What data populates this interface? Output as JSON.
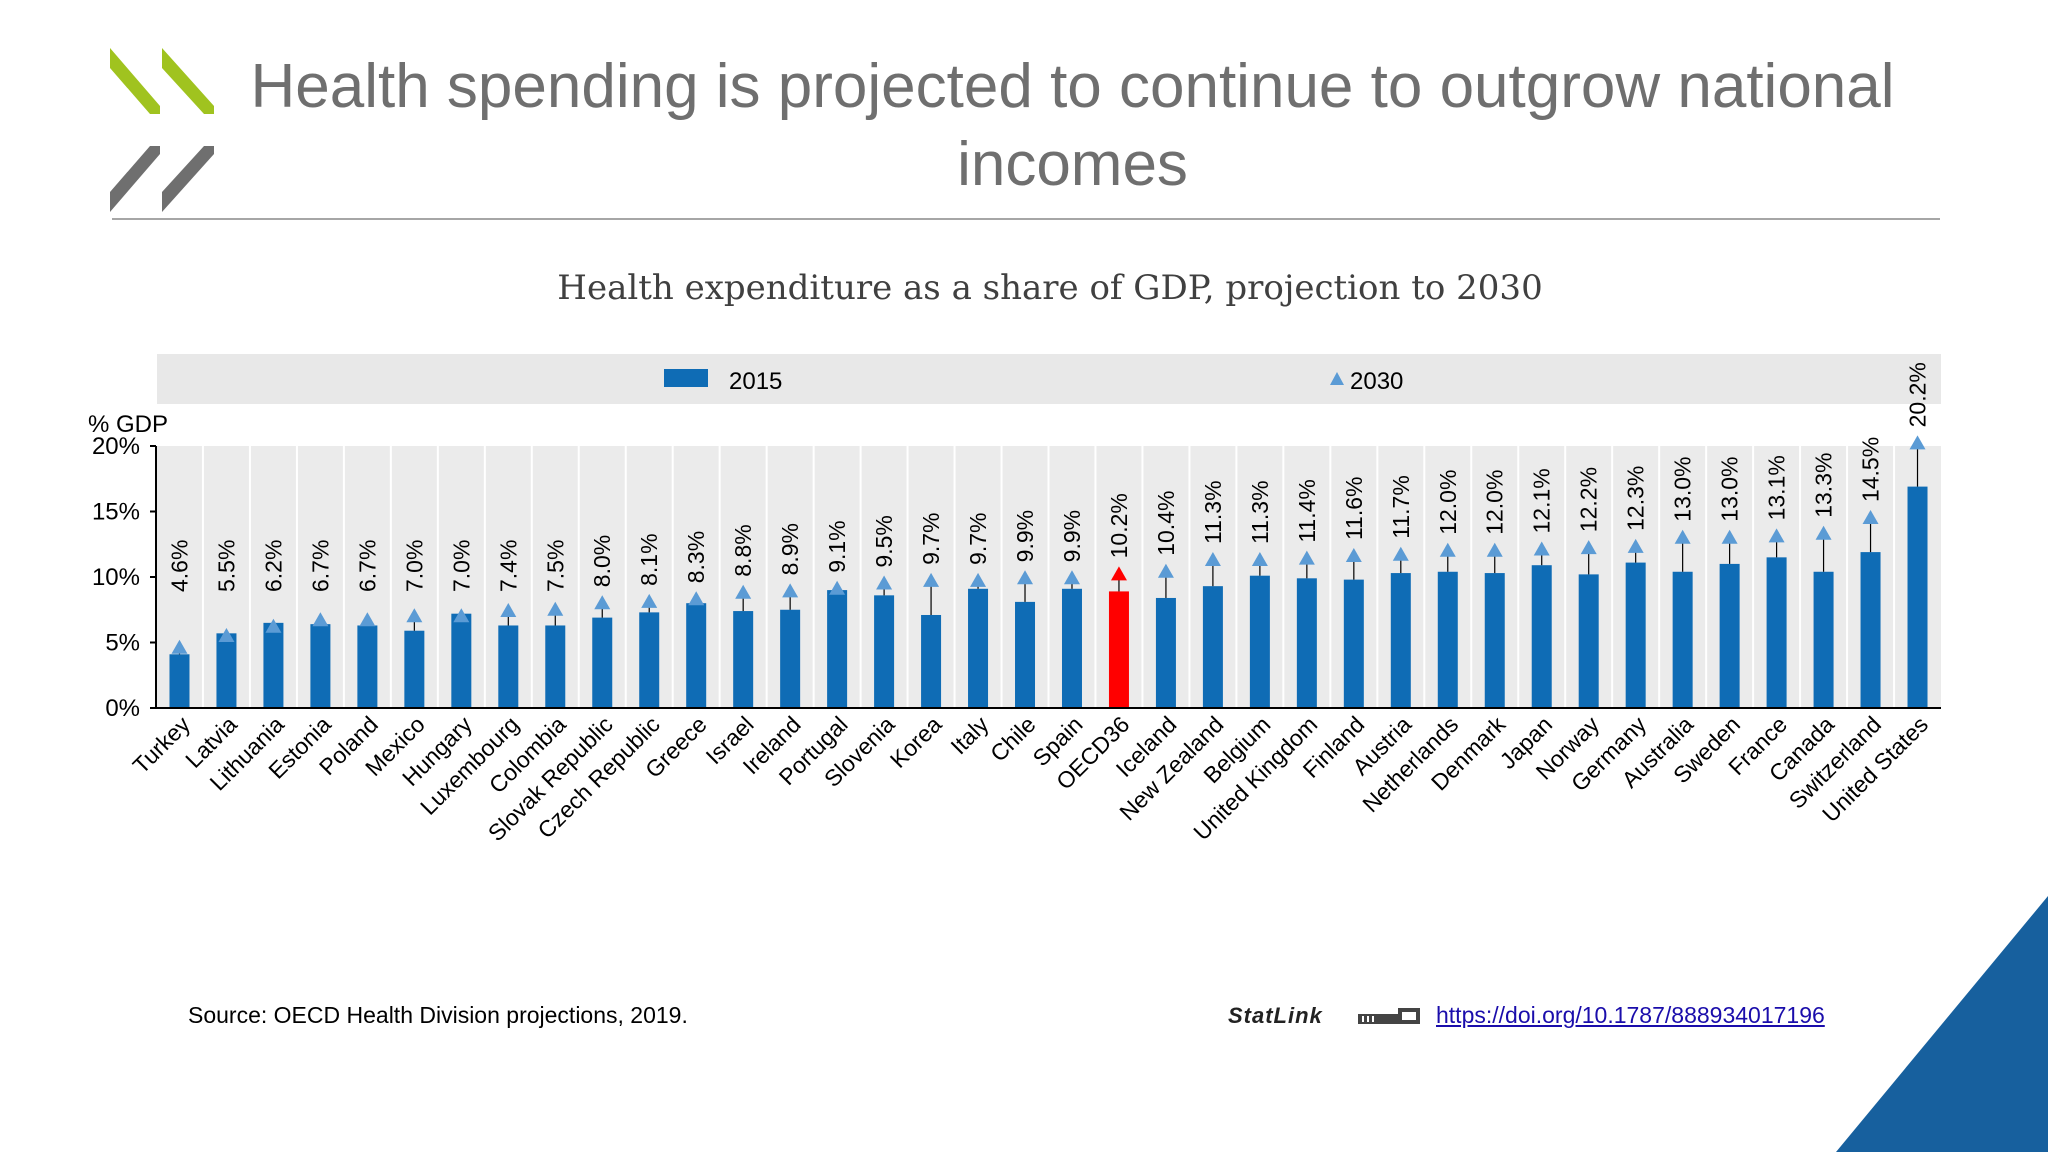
{
  "slide": {
    "title": "Health spending is projected to continue to outgrow national incomes",
    "source": "Source: OECD Health Division projections, 2019.",
    "statlink_label": "StatLink",
    "statlink_url": "https://doi.org/10.1787/888934017196"
  },
  "colors": {
    "bar": "#0f6cb5",
    "highlight_bar": "#ff0000",
    "marker": "#5b9bd5",
    "highlight_marker": "#ff0000",
    "legend_bg": "#e8e8e8",
    "plot_bg": "#ebebeb",
    "logo_green": "#a0c31f",
    "logo_grey": "#6f6f6f",
    "corner_blue": "#17609e"
  },
  "chart_data": {
    "type": "bar",
    "title": "Health expenditure as a share of GDP, projection to 2030",
    "ylabel": "% GDP",
    "ylim": [
      0,
      20
    ],
    "yticks": [
      "0%",
      "5%",
      "10%",
      "15%",
      "20%"
    ],
    "ytick_values": [
      0,
      5,
      10,
      15,
      20
    ],
    "legend_position": "top",
    "grid": "vertical",
    "highlight_category": "OECD36",
    "categories": [
      "Turkey",
      "Latvia",
      "Lithuania",
      "Estonia",
      "Poland",
      "Mexico",
      "Hungary",
      "Luxembourg",
      "Colombia",
      "Slovak Republic",
      "Czech Republic",
      "Greece",
      "Israel",
      "Ireland",
      "Portugal",
      "Slovenia",
      "Korea",
      "Italy",
      "Chile",
      "Spain",
      "OECD36",
      "Iceland",
      "New Zealand",
      "Belgium",
      "United Kingdom",
      "Finland",
      "Austria",
      "Netherlands",
      "Denmark",
      "Japan",
      "Norway",
      "Germany",
      "Australia",
      "Sweden",
      "France",
      "Canada",
      "Switzerland",
      "United States"
    ],
    "series": [
      {
        "name": "2015",
        "type": "bar",
        "values": [
          4.1,
          5.7,
          6.5,
          6.4,
          6.3,
          5.9,
          7.2,
          6.3,
          6.3,
          6.9,
          7.3,
          8.0,
          7.4,
          7.5,
          9.0,
          8.6,
          7.1,
          9.1,
          8.1,
          9.1,
          8.9,
          8.4,
          9.3,
          10.1,
          9.9,
          9.8,
          10.3,
          10.4,
          10.3,
          10.9,
          10.2,
          11.1,
          10.4,
          11.0,
          11.5,
          10.4,
          11.9,
          16.9
        ]
      },
      {
        "name": "2030",
        "type": "marker",
        "values": [
          4.6,
          5.5,
          6.2,
          6.7,
          6.7,
          7.0,
          7.0,
          7.4,
          7.5,
          8.0,
          8.1,
          8.3,
          8.8,
          8.9,
          9.1,
          9.5,
          9.7,
          9.7,
          9.9,
          9.9,
          10.2,
          10.4,
          11.3,
          11.3,
          11.4,
          11.6,
          11.7,
          12.0,
          12.0,
          12.1,
          12.2,
          12.3,
          13.0,
          13.0,
          13.1,
          13.3,
          14.5,
          20.2
        ]
      }
    ],
    "data_labels": [
      "4.6%",
      "5.5%",
      "6.2%",
      "6.7%",
      "6.7%",
      "7.0%",
      "7.0%",
      "7.4%",
      "7.5%",
      "8.0%",
      "8.1%",
      "8.3%",
      "8.8%",
      "8.9%",
      "9.1%",
      "9.5%",
      "9.7%",
      "9.7%",
      "9.9%",
      "9.9%",
      "10.2%",
      "10.4%",
      "11.3%",
      "11.3%",
      "11.4%",
      "11.6%",
      "11.7%",
      "12.0%",
      "12.0%",
      "12.1%",
      "12.2%",
      "12.3%",
      "13.0%",
      "13.0%",
      "13.1%",
      "13.3%",
      "14.5%",
      "20.2%"
    ]
  }
}
